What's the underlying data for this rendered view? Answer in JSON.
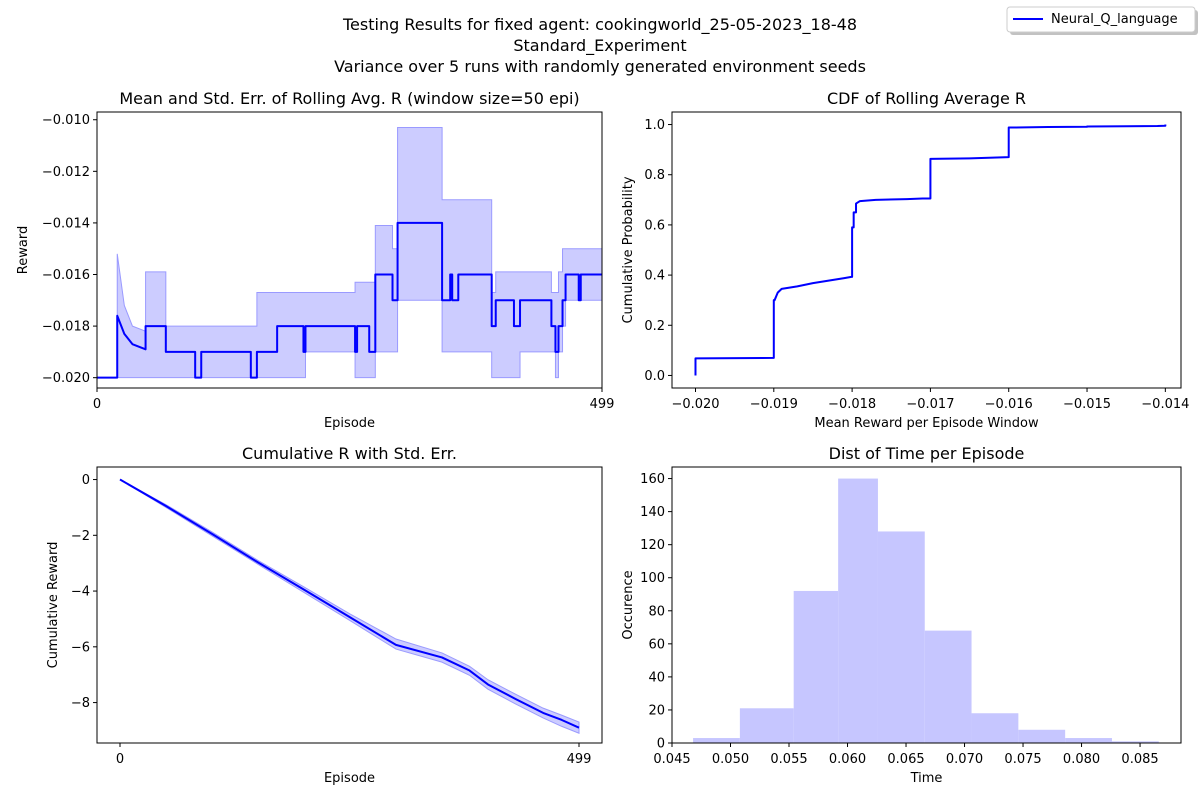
{
  "figure": {
    "title_line1": "Testing Results for fixed agent: cookingworld_25-05-2023_18-48",
    "title_line2": "Standard_Experiment",
    "title_line3": "Variance over 5 runs with randomly generated environment seeds",
    "legend_label": "Neural_Q_language",
    "line_color": "#0000ff",
    "fill_color": "#c6c6ff"
  },
  "chart_data": [
    {
      "type": "line",
      "title": "Mean and Std. Err. of Rolling Avg. R (window size=50 epi)",
      "xlabel": "Episode",
      "ylabel": "Reward",
      "xlim": [
        0,
        499
      ],
      "ylim": [
        -0.0204,
        -0.0097
      ],
      "xticks": [
        0,
        499
      ],
      "yticks": [
        -0.02,
        -0.018,
        -0.016,
        -0.014,
        -0.012,
        -0.01
      ],
      "ytick_labels": [
        "−0.020",
        "−0.018",
        "−0.016",
        "−0.014",
        "−0.012",
        "−0.010"
      ],
      "series": [
        {
          "name": "Neural_Q_language",
          "x": [
            0,
            20,
            20,
            27,
            35,
            48,
            48,
            68,
            68,
            97,
            97,
            103,
            103,
            152,
            152,
            158,
            158,
            178,
            178,
            204,
            204,
            206,
            206,
            255,
            255,
            257,
            257,
            269,
            269,
            275,
            275,
            292,
            292,
            297,
            297,
            341,
            341,
            349,
            349,
            351,
            351,
            357,
            357,
            390,
            390,
            394,
            394,
            412,
            412,
            418,
            418,
            449,
            449,
            453,
            453,
            456,
            456,
            460,
            460,
            463,
            463,
            476,
            476,
            478,
            478,
            499
          ],
          "y": [
            -0.02,
            -0.02,
            -0.0176,
            -0.0183,
            -0.0187,
            -0.0189,
            -0.018,
            -0.018,
            -0.019,
            -0.019,
            -0.02,
            -0.02,
            -0.019,
            -0.019,
            -0.02,
            -0.02,
            -0.019,
            -0.019,
            -0.018,
            -0.018,
            -0.019,
            -0.019,
            -0.018,
            -0.018,
            -0.019,
            -0.019,
            -0.018,
            -0.018,
            -0.019,
            -0.019,
            -0.016,
            -0.016,
            -0.017,
            -0.017,
            -0.014,
            -0.014,
            -0.017,
            -0.017,
            -0.016,
            -0.016,
            -0.017,
            -0.017,
            -0.016,
            -0.016,
            -0.018,
            -0.018,
            -0.017,
            -0.017,
            -0.018,
            -0.018,
            -0.017,
            -0.017,
            -0.018,
            -0.018,
            -0.019,
            -0.019,
            -0.018,
            -0.018,
            -0.017,
            -0.017,
            -0.016,
            -0.016,
            -0.017,
            -0.017,
            -0.016,
            -0.016
          ],
          "upper": [
            -0.02,
            -0.02,
            -0.0152,
            -0.0172,
            -0.018,
            -0.0182,
            -0.0159,
            -0.0159,
            -0.018,
            -0.018,
            -0.018,
            -0.018,
            -0.018,
            -0.018,
            -0.018,
            -0.018,
            -0.0167,
            -0.0167,
            -0.0167,
            -0.0167,
            -0.0167,
            -0.0167,
            -0.0167,
            -0.0167,
            -0.0163,
            -0.0163,
            -0.0163,
            -0.0163,
            -0.0163,
            -0.0163,
            -0.0141,
            -0.0141,
            -0.015,
            -0.015,
            -0.0103,
            -0.0103,
            -0.0131,
            -0.0131,
            -0.0131,
            -0.0131,
            -0.0131,
            -0.0131,
            -0.0131,
            -0.0131,
            -0.0167,
            -0.0167,
            -0.0159,
            -0.0159,
            -0.0159,
            -0.0159,
            -0.0159,
            -0.0159,
            -0.0167,
            -0.0167,
            -0.0167,
            -0.0167,
            -0.0159,
            -0.0159,
            -0.015,
            -0.015,
            -0.015,
            -0.015,
            -0.015,
            -0.015,
            -0.015,
            -0.015
          ],
          "lower": [
            -0.02,
            -0.02,
            -0.02,
            -0.02,
            -0.02,
            -0.02,
            -0.02,
            -0.02,
            -0.02,
            -0.02,
            -0.02,
            -0.02,
            -0.02,
            -0.02,
            -0.02,
            -0.02,
            -0.02,
            -0.02,
            -0.02,
            -0.02,
            -0.02,
            -0.02,
            -0.019,
            -0.019,
            -0.02,
            -0.02,
            -0.02,
            -0.02,
            -0.02,
            -0.02,
            -0.019,
            -0.019,
            -0.019,
            -0.019,
            -0.017,
            -0.017,
            -0.019,
            -0.019,
            -0.019,
            -0.019,
            -0.019,
            -0.019,
            -0.019,
            -0.019,
            -0.02,
            -0.02,
            -0.02,
            -0.02,
            -0.02,
            -0.02,
            -0.019,
            -0.019,
            -0.019,
            -0.019,
            -0.02,
            -0.02,
            -0.019,
            -0.019,
            -0.018,
            -0.018,
            -0.017,
            -0.017,
            -0.017,
            -0.017,
            -0.017,
            -0.017
          ]
        }
      ]
    },
    {
      "type": "line",
      "title": "CDF of Rolling Average R",
      "xlabel": "Mean Reward per Episode Window",
      "ylabel": "Cumulative Probability",
      "xlim": [
        -0.0203,
        -0.0138
      ],
      "ylim": [
        -0.05,
        1.05
      ],
      "xticks": [
        -0.02,
        -0.019,
        -0.018,
        -0.017,
        -0.016,
        -0.015,
        -0.014
      ],
      "xtick_labels": [
        "−0.020",
        "−0.019",
        "−0.018",
        "−0.017",
        "−0.016",
        "−0.015",
        "−0.014"
      ],
      "yticks": [
        0.0,
        0.2,
        0.4,
        0.6,
        0.8,
        1.0
      ],
      "ytick_labels": [
        "0.0",
        "0.2",
        "0.4",
        "0.6",
        "0.8",
        "1.0"
      ],
      "series": [
        {
          "name": "Neural_Q_language",
          "x": [
            -0.02,
            -0.02,
            -0.019,
            -0.019,
            -0.01899,
            -0.01895,
            -0.0189,
            -0.0187,
            -0.0185,
            -0.0183,
            -0.0181,
            -0.01801,
            -0.018,
            -0.018,
            -0.01798,
            -0.01798,
            -0.01795,
            -0.01795,
            -0.0179,
            -0.0177,
            -0.0173,
            -0.0171,
            -0.017,
            -0.017,
            -0.0165,
            -0.0162,
            -0.016,
            -0.016,
            -0.0155,
            -0.015,
            -0.015,
            -0.0145,
            -0.0141,
            -0.014,
            -0.014
          ],
          "y": [
            0.0,
            0.068,
            0.07,
            0.3,
            0.3,
            0.33,
            0.345,
            0.355,
            0.368,
            0.378,
            0.388,
            0.393,
            0.393,
            0.59,
            0.59,
            0.65,
            0.65,
            0.685,
            0.695,
            0.7,
            0.703,
            0.705,
            0.705,
            0.863,
            0.865,
            0.868,
            0.87,
            0.988,
            0.99,
            0.991,
            0.992,
            0.993,
            0.994,
            0.995,
            1.0
          ]
        }
      ]
    },
    {
      "type": "area",
      "title": "Cumulative R with Std. Err.",
      "xlabel": "Episode",
      "ylabel": "Cumulative Reward",
      "xlim": [
        -25,
        524
      ],
      "ylim": [
        -9.45,
        0.45
      ],
      "xticks": [
        0,
        499
      ],
      "yticks": [
        0,
        -2,
        -4,
        -6,
        -8
      ],
      "ytick_labels": [
        "0",
        "−2",
        "−4",
        "−6",
        "−8"
      ],
      "series": [
        {
          "name": "Neural_Q_language",
          "x": [
            0,
            50,
            100,
            150,
            200,
            250,
            300,
            350,
            380,
            400,
            430,
            460,
            480,
            499
          ],
          "y": [
            0,
            -0.95,
            -1.95,
            -2.97,
            -3.95,
            -4.94,
            -5.93,
            -6.38,
            -6.85,
            -7.35,
            -7.87,
            -8.37,
            -8.62,
            -8.9
          ],
          "upper": [
            0,
            -0.9,
            -1.88,
            -2.9,
            -3.85,
            -4.82,
            -5.72,
            -6.22,
            -6.7,
            -7.18,
            -7.7,
            -8.2,
            -8.45,
            -8.7
          ],
          "lower": [
            0,
            -1.0,
            -2.02,
            -3.04,
            -4.05,
            -5.06,
            -6.08,
            -6.55,
            -7.02,
            -7.52,
            -8.05,
            -8.55,
            -8.85,
            -9.1
          ]
        }
      ]
    },
    {
      "type": "bar",
      "title": "Dist of Time per Episode",
      "xlabel": "Time",
      "ylabel": "Occurence",
      "xlim": [
        0.045,
        0.0885
      ],
      "ylim": [
        0,
        167
      ],
      "xticks": [
        0.045,
        0.05,
        0.055,
        0.06,
        0.065,
        0.07,
        0.075,
        0.08,
        0.085
      ],
      "xtick_labels": [
        "0.045",
        "0.050",
        "0.055",
        "0.060",
        "0.065",
        "0.070",
        "0.075",
        "0.080",
        "0.085"
      ],
      "yticks": [
        0,
        20,
        40,
        60,
        80,
        100,
        120,
        140,
        160
      ],
      "ytick_labels": [
        "0",
        "20",
        "40",
        "60",
        "80",
        "100",
        "120",
        "140",
        "160"
      ],
      "bin_edges": [
        0.0468,
        0.0508,
        0.0554,
        0.0592,
        0.0626,
        0.0666,
        0.0706,
        0.0746,
        0.0786,
        0.0826,
        0.0866
      ],
      "values": [
        3,
        21,
        92,
        160,
        128,
        68,
        18,
        8,
        3,
        1
      ]
    }
  ]
}
